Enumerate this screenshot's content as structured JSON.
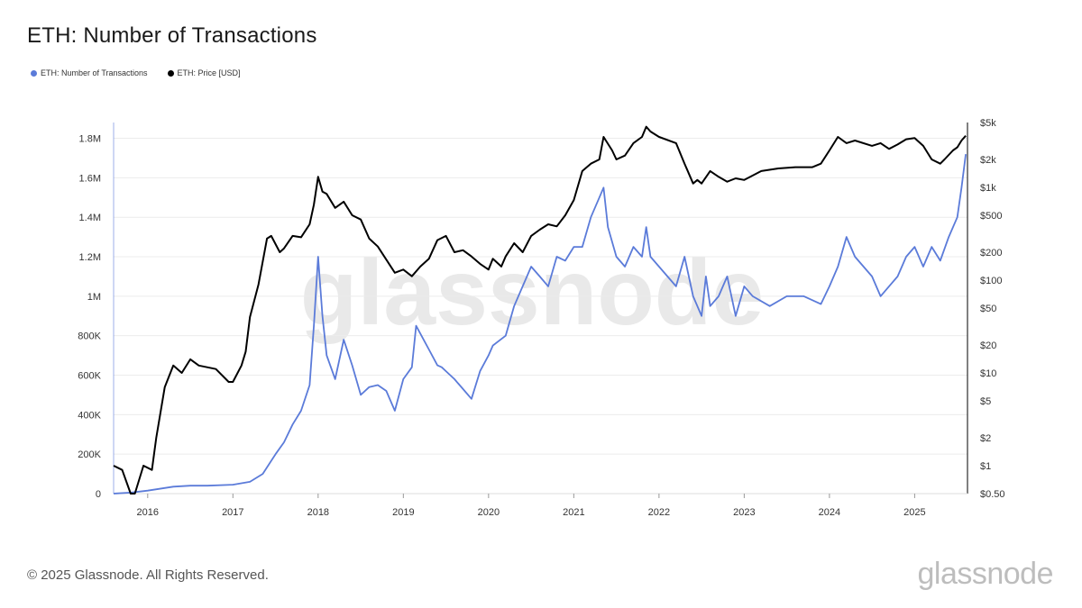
{
  "header": {
    "title": "ETH: Number of Transactions"
  },
  "legend": [
    {
      "label": "ETH: Number of Transactions",
      "color": "#5b7bd9"
    },
    {
      "label": "ETH: Price [USD]",
      "color": "#000000"
    }
  ],
  "footer": {
    "copyright": "© 2025 Glassnode. All Rights Reserved.",
    "brand": "glassnode"
  },
  "watermark": "glassnode",
  "chart_data": {
    "type": "line",
    "title": "ETH: Number of Transactions",
    "x_ticks": [
      "2016",
      "2017",
      "2018",
      "2019",
      "2020",
      "2021",
      "2022",
      "2023",
      "2024",
      "2025"
    ],
    "x_tick_values": [
      2016,
      2017,
      2018,
      2019,
      2020,
      2021,
      2022,
      2023,
      2024,
      2025
    ],
    "xlim": [
      2015.6,
      2025.62
    ],
    "y_left": {
      "ticks": [
        0,
        200000,
        400000,
        600000,
        800000,
        1000000,
        1200000,
        1400000,
        1600000,
        1800000
      ],
      "tick_labels": [
        "0",
        "200K",
        "400K",
        "600K",
        "800K",
        "1M",
        "1.2M",
        "1.4M",
        "1.6M",
        "1.8M"
      ],
      "range": [
        0,
        1880000
      ]
    },
    "y_right": {
      "scale": "log",
      "ticks": [
        0.5,
        1,
        2,
        5,
        10,
        20,
        50,
        100,
        200,
        500,
        1000,
        2000,
        5000
      ],
      "tick_labels": [
        "$0.50",
        "$1",
        "$2",
        "$5",
        "$10",
        "$20",
        "$50",
        "$100",
        "$200",
        "$500",
        "$1k",
        "$2k",
        "$5k"
      ],
      "range": [
        0.5,
        5000
      ]
    },
    "grid": true,
    "legend_position": "top-left",
    "series": [
      {
        "name": "ETH: Number of Transactions",
        "color": "#5b7bd9",
        "axis": "left",
        "x": [
          2015.6,
          2015.8,
          2016.0,
          2016.3,
          2016.5,
          2016.7,
          2017.0,
          2017.2,
          2017.35,
          2017.5,
          2017.6,
          2017.7,
          2017.8,
          2017.9,
          2017.95,
          2018.0,
          2018.05,
          2018.1,
          2018.2,
          2018.3,
          2018.4,
          2018.5,
          2018.6,
          2018.7,
          2018.8,
          2018.9,
          2019.0,
          2019.1,
          2019.15,
          2019.3,
          2019.4,
          2019.45,
          2019.5,
          2019.6,
          2019.7,
          2019.8,
          2019.9,
          2020.0,
          2020.05,
          2020.2,
          2020.3,
          2020.5,
          2020.6,
          2020.7,
          2020.8,
          2020.9,
          2021.0,
          2021.1,
          2021.2,
          2021.3,
          2021.35,
          2021.4,
          2021.5,
          2021.6,
          2021.7,
          2021.8,
          2021.85,
          2021.9,
          2022.0,
          2022.1,
          2022.2,
          2022.3,
          2022.4,
          2022.5,
          2022.55,
          2022.6,
          2022.7,
          2022.8,
          2022.9,
          2023.0,
          2023.1,
          2023.3,
          2023.5,
          2023.7,
          2023.9,
          2024.0,
          2024.1,
          2024.2,
          2024.3,
          2024.4,
          2024.5,
          2024.6,
          2024.7,
          2024.8,
          2024.9,
          2025.0,
          2025.1,
          2025.2,
          2025.3,
          2025.4,
          2025.5,
          2025.55,
          2025.6
        ],
        "y": [
          0,
          5000,
          15000,
          35000,
          40000,
          40000,
          45000,
          60000,
          100000,
          200000,
          260000,
          350000,
          420000,
          550000,
          850000,
          1200000,
          900000,
          700000,
          580000,
          780000,
          650000,
          500000,
          540000,
          550000,
          520000,
          420000,
          580000,
          640000,
          850000,
          730000,
          650000,
          640000,
          620000,
          580000,
          530000,
          480000,
          620000,
          700000,
          750000,
          800000,
          950000,
          1150000,
          1100000,
          1050000,
          1200000,
          1180000,
          1250000,
          1250000,
          1400000,
          1500000,
          1550000,
          1350000,
          1200000,
          1150000,
          1250000,
          1200000,
          1350000,
          1200000,
          1150000,
          1100000,
          1050000,
          1200000,
          1000000,
          900000,
          1100000,
          950000,
          1000000,
          1100000,
          900000,
          1050000,
          1000000,
          950000,
          1000000,
          1000000,
          960000,
          1050000,
          1150000,
          1300000,
          1200000,
          1150000,
          1100000,
          1000000,
          1050000,
          1100000,
          1200000,
          1250000,
          1150000,
          1250000,
          1180000,
          1300000,
          1400000,
          1550000,
          1720000
        ]
      },
      {
        "name": "ETH: Price [USD]",
        "color": "#000000",
        "axis": "right",
        "x": [
          2015.6,
          2015.7,
          2015.8,
          2015.85,
          2015.95,
          2016.05,
          2016.1,
          2016.2,
          2016.3,
          2016.4,
          2016.5,
          2016.6,
          2016.8,
          2016.95,
          2017.0,
          2017.1,
          2017.15,
          2017.2,
          2017.3,
          2017.4,
          2017.45,
          2017.55,
          2017.6,
          2017.7,
          2017.8,
          2017.9,
          2017.95,
          2018.0,
          2018.05,
          2018.1,
          2018.2,
          2018.3,
          2018.4,
          2018.5,
          2018.6,
          2018.7,
          2018.9,
          2019.0,
          2019.1,
          2019.2,
          2019.3,
          2019.4,
          2019.5,
          2019.6,
          2019.7,
          2019.8,
          2019.9,
          2020.0,
          2020.05,
          2020.15,
          2020.2,
          2020.3,
          2020.4,
          2020.5,
          2020.6,
          2020.7,
          2020.8,
          2020.9,
          2021.0,
          2021.1,
          2021.2,
          2021.3,
          2021.35,
          2021.45,
          2021.5,
          2021.6,
          2021.7,
          2021.8,
          2021.85,
          2021.9,
          2022.0,
          2022.2,
          2022.3,
          2022.4,
          2022.45,
          2022.5,
          2022.6,
          2022.7,
          2022.8,
          2022.9,
          2023.0,
          2023.2,
          2023.4,
          2023.6,
          2023.8,
          2023.9,
          2024.0,
          2024.1,
          2024.2,
          2024.3,
          2024.5,
          2024.6,
          2024.7,
          2024.8,
          2024.9,
          2025.0,
          2025.1,
          2025.2,
          2025.3,
          2025.35,
          2025.45,
          2025.5,
          2025.55,
          2025.6
        ],
        "y": [
          1.0,
          0.9,
          0.5,
          0.5,
          1.0,
          0.9,
          2,
          7,
          12,
          10,
          14,
          12,
          11,
          8,
          8,
          12,
          17,
          40,
          90,
          280,
          300,
          200,
          220,
          300,
          290,
          400,
          650,
          1300,
          900,
          850,
          600,
          700,
          500,
          450,
          280,
          230,
          120,
          130,
          110,
          140,
          170,
          270,
          300,
          200,
          210,
          180,
          150,
          130,
          170,
          140,
          180,
          250,
          200,
          300,
          350,
          400,
          380,
          500,
          730,
          1500,
          1800,
          2000,
          3500,
          2500,
          2000,
          2200,
          3000,
          3500,
          4500,
          4000,
          3500,
          3000,
          1800,
          1100,
          1200,
          1100,
          1500,
          1300,
          1150,
          1250,
          1200,
          1500,
          1600,
          1650,
          1650,
          1800,
          2500,
          3500,
          3000,
          3200,
          2800,
          3000,
          2600,
          2900,
          3300,
          3400,
          2800,
          2000,
          1800,
          2000,
          2500,
          2700,
          3200,
          3600
        ]
      }
    ]
  }
}
